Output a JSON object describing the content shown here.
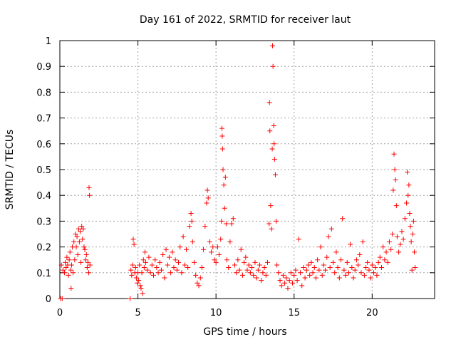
{
  "chart_data": {
    "type": "scatter",
    "title": "Day 161 of 2022, SRMTID for receiver laut",
    "xlabel": "GPS time / hours",
    "ylabel": "SRMTID / TECUs",
    "xlim": [
      0,
      24
    ],
    "ylim": [
      0,
      1
    ],
    "xticks": [
      0,
      5,
      10,
      15,
      20
    ],
    "yticks": [
      0,
      0.1,
      0.2,
      0.3,
      0.4,
      0.5,
      0.6,
      0.7,
      0.8,
      0.9,
      1
    ],
    "xtick_labels": [
      "0",
      "5",
      "10",
      "15",
      "20"
    ],
    "ytick_labels": [
      "0",
      "0.1",
      "0.2",
      "0.3",
      "0.4",
      "0.5",
      "0.6",
      "0.7",
      "0.8",
      "0.9",
      "1"
    ],
    "grid": true,
    "marker": "+",
    "color": "#ff0000",
    "series": [
      {
        "name": "SRMTID",
        "points": [
          [
            0.05,
            0.0
          ],
          [
            0.1,
            0.13
          ],
          [
            0.15,
            0.0
          ],
          [
            0.2,
            0.11
          ],
          [
            0.3,
            0.1
          ],
          [
            0.35,
            0.14
          ],
          [
            0.4,
            0.12
          ],
          [
            0.45,
            0.16
          ],
          [
            0.5,
            0.13
          ],
          [
            0.55,
            0.09
          ],
          [
            0.6,
            0.15
          ],
          [
            0.65,
            0.18
          ],
          [
            0.7,
            0.11
          ],
          [
            0.72,
            0.04
          ],
          [
            0.75,
            0.13
          ],
          [
            0.8,
            0.2
          ],
          [
            0.85,
            0.1
          ],
          [
            0.9,
            0.22
          ],
          [
            0.95,
            0.15
          ],
          [
            1.0,
            0.25
          ],
          [
            1.05,
            0.2
          ],
          [
            1.1,
            0.24
          ],
          [
            1.15,
            0.17
          ],
          [
            1.2,
            0.27
          ],
          [
            1.25,
            0.22
          ],
          [
            1.3,
            0.26
          ],
          [
            1.35,
            0.14
          ],
          [
            1.4,
            0.28
          ],
          [
            1.45,
            0.23
          ],
          [
            1.5,
            0.27
          ],
          [
            1.55,
            0.2
          ],
          [
            1.6,
            0.19
          ],
          [
            1.65,
            0.15
          ],
          [
            1.7,
            0.17
          ],
          [
            1.75,
            0.12
          ],
          [
            1.8,
            0.14
          ],
          [
            1.85,
            0.1
          ],
          [
            1.87,
            0.43
          ],
          [
            1.9,
            0.4
          ],
          [
            1.93,
            0.13
          ],
          [
            4.5,
            0.0
          ],
          [
            4.55,
            0.11
          ],
          [
            4.6,
            0.09
          ],
          [
            4.65,
            0.13
          ],
          [
            4.7,
            0.23
          ],
          [
            4.75,
            0.21
          ],
          [
            4.8,
            0.1
          ],
          [
            4.85,
            0.12
          ],
          [
            4.9,
            0.08
          ],
          [
            4.95,
            0.06
          ],
          [
            5.0,
            0.1
          ],
          [
            5.05,
            0.07
          ],
          [
            5.1,
            0.13
          ],
          [
            5.15,
            0.05
          ],
          [
            5.2,
            0.04
          ],
          [
            5.25,
            0.1
          ],
          [
            5.3,
            0.02
          ],
          [
            5.35,
            0.15
          ],
          [
            5.4,
            0.12
          ],
          [
            5.45,
            0.18
          ],
          [
            5.5,
            0.14
          ],
          [
            5.6,
            0.11
          ],
          [
            5.7,
            0.16
          ],
          [
            5.8,
            0.1
          ],
          [
            5.9,
            0.13
          ],
          [
            6.0,
            0.09
          ],
          [
            6.1,
            0.15
          ],
          [
            6.2,
            0.12
          ],
          [
            6.3,
            0.1
          ],
          [
            6.4,
            0.14
          ],
          [
            6.5,
            0.11
          ],
          [
            6.6,
            0.17
          ],
          [
            6.7,
            0.08
          ],
          [
            6.8,
            0.19
          ],
          [
            6.9,
            0.13
          ],
          [
            7.0,
            0.16
          ],
          [
            7.1,
            0.1
          ],
          [
            7.2,
            0.18
          ],
          [
            7.3,
            0.12
          ],
          [
            7.4,
            0.15
          ],
          [
            7.5,
            0.11
          ],
          [
            7.6,
            0.14
          ],
          [
            7.7,
            0.2
          ],
          [
            7.8,
            0.1
          ],
          [
            7.9,
            0.24
          ],
          [
            8.0,
            0.13
          ],
          [
            8.1,
            0.19
          ],
          [
            8.2,
            0.12
          ],
          [
            8.3,
            0.28
          ],
          [
            8.4,
            0.33
          ],
          [
            8.45,
            0.3
          ],
          [
            8.5,
            0.22
          ],
          [
            8.6,
            0.14
          ],
          [
            8.7,
            0.09
          ],
          [
            8.8,
            0.06
          ],
          [
            8.9,
            0.05
          ],
          [
            9.0,
            0.08
          ],
          [
            9.1,
            0.12
          ],
          [
            9.2,
            0.19
          ],
          [
            9.3,
            0.28
          ],
          [
            9.4,
            0.37
          ],
          [
            9.45,
            0.42
          ],
          [
            9.5,
            0.39
          ],
          [
            9.6,
            0.22
          ],
          [
            9.7,
            0.18
          ],
          [
            9.8,
            0.2
          ],
          [
            9.9,
            0.15
          ],
          [
            10.0,
            0.14
          ],
          [
            10.1,
            0.2
          ],
          [
            10.2,
            0.17
          ],
          [
            10.3,
            0.23
          ],
          [
            10.35,
            0.3
          ],
          [
            10.38,
            0.66
          ],
          [
            10.4,
            0.63
          ],
          [
            10.42,
            0.58
          ],
          [
            10.45,
            0.5
          ],
          [
            10.5,
            0.44
          ],
          [
            10.55,
            0.35
          ],
          [
            10.6,
            0.47
          ],
          [
            10.65,
            0.29
          ],
          [
            10.7,
            0.15
          ],
          [
            10.8,
            0.12
          ],
          [
            10.9,
            0.22
          ],
          [
            11.0,
            0.29
          ],
          [
            11.1,
            0.31
          ],
          [
            11.2,
            0.13
          ],
          [
            11.3,
            0.1
          ],
          [
            11.4,
            0.15
          ],
          [
            11.5,
            0.11
          ],
          [
            11.6,
            0.19
          ],
          [
            11.7,
            0.09
          ],
          [
            11.8,
            0.14
          ],
          [
            11.9,
            0.16
          ],
          [
            12.0,
            0.11
          ],
          [
            12.1,
            0.13
          ],
          [
            12.2,
            0.1
          ],
          [
            12.3,
            0.12
          ],
          [
            12.4,
            0.09
          ],
          [
            12.5,
            0.14
          ],
          [
            12.6,
            0.08
          ],
          [
            12.7,
            0.11
          ],
          [
            12.8,
            0.13
          ],
          [
            12.9,
            0.07
          ],
          [
            13.0,
            0.1
          ],
          [
            13.1,
            0.12
          ],
          [
            13.2,
            0.09
          ],
          [
            13.3,
            0.14
          ],
          [
            13.4,
            0.29
          ],
          [
            13.42,
            0.76
          ],
          [
            13.45,
            0.65
          ],
          [
            13.5,
            0.36
          ],
          [
            13.55,
            0.27
          ],
          [
            13.6,
            0.58
          ],
          [
            13.62,
            0.98
          ],
          [
            13.65,
            0.9
          ],
          [
            13.7,
            0.67
          ],
          [
            13.72,
            0.6
          ],
          [
            13.75,
            0.54
          ],
          [
            13.8,
            0.48
          ],
          [
            13.85,
            0.3
          ],
          [
            13.9,
            0.13
          ],
          [
            14.0,
            0.1
          ],
          [
            14.1,
            0.07
          ],
          [
            14.2,
            0.05
          ],
          [
            14.3,
            0.09
          ],
          [
            14.4,
            0.06
          ],
          [
            14.5,
            0.08
          ],
          [
            14.6,
            0.04
          ],
          [
            14.7,
            0.07
          ],
          [
            14.8,
            0.1
          ],
          [
            14.9,
            0.06
          ],
          [
            15.0,
            0.09
          ],
          [
            15.1,
            0.11
          ],
          [
            15.2,
            0.07
          ],
          [
            15.3,
            0.23
          ],
          [
            15.4,
            0.1
          ],
          [
            15.5,
            0.05
          ],
          [
            15.6,
            0.12
          ],
          [
            15.7,
            0.08
          ],
          [
            15.8,
            0.11
          ],
          [
            15.9,
            0.13
          ],
          [
            16.0,
            0.09
          ],
          [
            16.1,
            0.14
          ],
          [
            16.2,
            0.1
          ],
          [
            16.3,
            0.12
          ],
          [
            16.4,
            0.08
          ],
          [
            16.5,
            0.15
          ],
          [
            16.6,
            0.11
          ],
          [
            16.7,
            0.2
          ],
          [
            16.8,
            0.09
          ],
          [
            16.9,
            0.13
          ],
          [
            17.0,
            0.11
          ],
          [
            17.1,
            0.16
          ],
          [
            17.2,
            0.24
          ],
          [
            17.3,
            0.12
          ],
          [
            17.4,
            0.27
          ],
          [
            17.5,
            0.14
          ],
          [
            17.6,
            0.1
          ],
          [
            17.7,
            0.18
          ],
          [
            17.8,
            0.12
          ],
          [
            17.9,
            0.08
          ],
          [
            18.0,
            0.15
          ],
          [
            18.1,
            0.31
          ],
          [
            18.2,
            0.11
          ],
          [
            18.3,
            0.09
          ],
          [
            18.4,
            0.14
          ],
          [
            18.5,
            0.1
          ],
          [
            18.6,
            0.21
          ],
          [
            18.7,
            0.12
          ],
          [
            18.8,
            0.08
          ],
          [
            18.9,
            0.11
          ],
          [
            19.0,
            0.15
          ],
          [
            19.1,
            0.13
          ],
          [
            19.2,
            0.17
          ],
          [
            19.3,
            0.1
          ],
          [
            19.4,
            0.22
          ],
          [
            19.5,
            0.09
          ],
          [
            19.6,
            0.12
          ],
          [
            19.7,
            0.14
          ],
          [
            19.8,
            0.11
          ],
          [
            19.9,
            0.08
          ],
          [
            20.0,
            0.13
          ],
          [
            20.1,
            0.1
          ],
          [
            20.2,
            0.12
          ],
          [
            20.3,
            0.09
          ],
          [
            20.4,
            0.14
          ],
          [
            20.5,
            0.16
          ],
          [
            20.6,
            0.12
          ],
          [
            20.7,
            0.2
          ],
          [
            20.8,
            0.15
          ],
          [
            20.9,
            0.18
          ],
          [
            21.0,
            0.14
          ],
          [
            21.1,
            0.22
          ],
          [
            21.2,
            0.19
          ],
          [
            21.3,
            0.25
          ],
          [
            21.35,
            0.42
          ],
          [
            21.4,
            0.56
          ],
          [
            21.45,
            0.5
          ],
          [
            21.5,
            0.46
          ],
          [
            21.55,
            0.36
          ],
          [
            21.6,
            0.24
          ],
          [
            21.7,
            0.18
          ],
          [
            21.8,
            0.21
          ],
          [
            21.9,
            0.26
          ],
          [
            22.0,
            0.23
          ],
          [
            22.1,
            0.31
          ],
          [
            22.2,
            0.37
          ],
          [
            22.25,
            0.49
          ],
          [
            22.3,
            0.4
          ],
          [
            22.35,
            0.44
          ],
          [
            22.4,
            0.33
          ],
          [
            22.45,
            0.28
          ],
          [
            22.5,
            0.22
          ],
          [
            22.55,
            0.11
          ],
          [
            22.6,
            0.25
          ],
          [
            22.65,
            0.3
          ],
          [
            22.7,
            0.18
          ],
          [
            22.75,
            0.12
          ]
        ]
      }
    ]
  }
}
